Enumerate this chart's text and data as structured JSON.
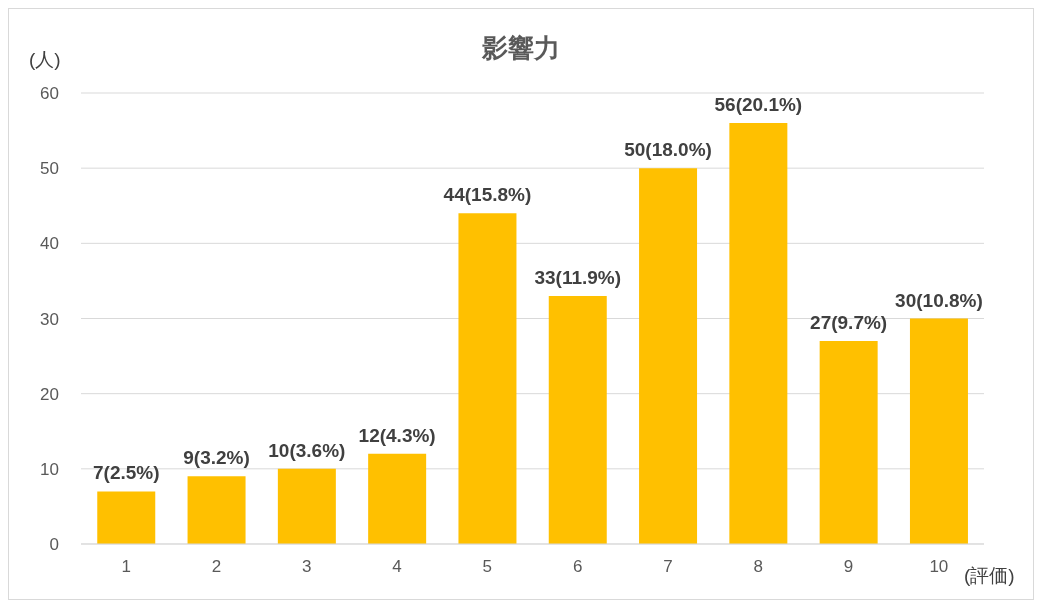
{
  "chart_data": {
    "type": "bar",
    "title": "影響力",
    "ylabel": "(人)",
    "xlabel": "(評価)",
    "categories": [
      "1",
      "2",
      "3",
      "4",
      "5",
      "6",
      "7",
      "8",
      "9",
      "10"
    ],
    "values": [
      7,
      9,
      10,
      12,
      44,
      33,
      50,
      56,
      27,
      30
    ],
    "value_labels": [
      "7(2.5%)",
      "9(3.2%)",
      "10(3.6%)",
      "12(4.3%)",
      "44(15.8%)",
      "33(11.9%)",
      "50(18.0%)",
      "56(20.1%)",
      "27(9.7%)",
      "30(10.8%)"
    ],
    "color": "#ffc000",
    "ylim": [
      0,
      60
    ],
    "yticks": [
      0,
      10,
      20,
      30,
      40,
      50,
      60
    ],
    "grid": "y",
    "legend": false
  }
}
